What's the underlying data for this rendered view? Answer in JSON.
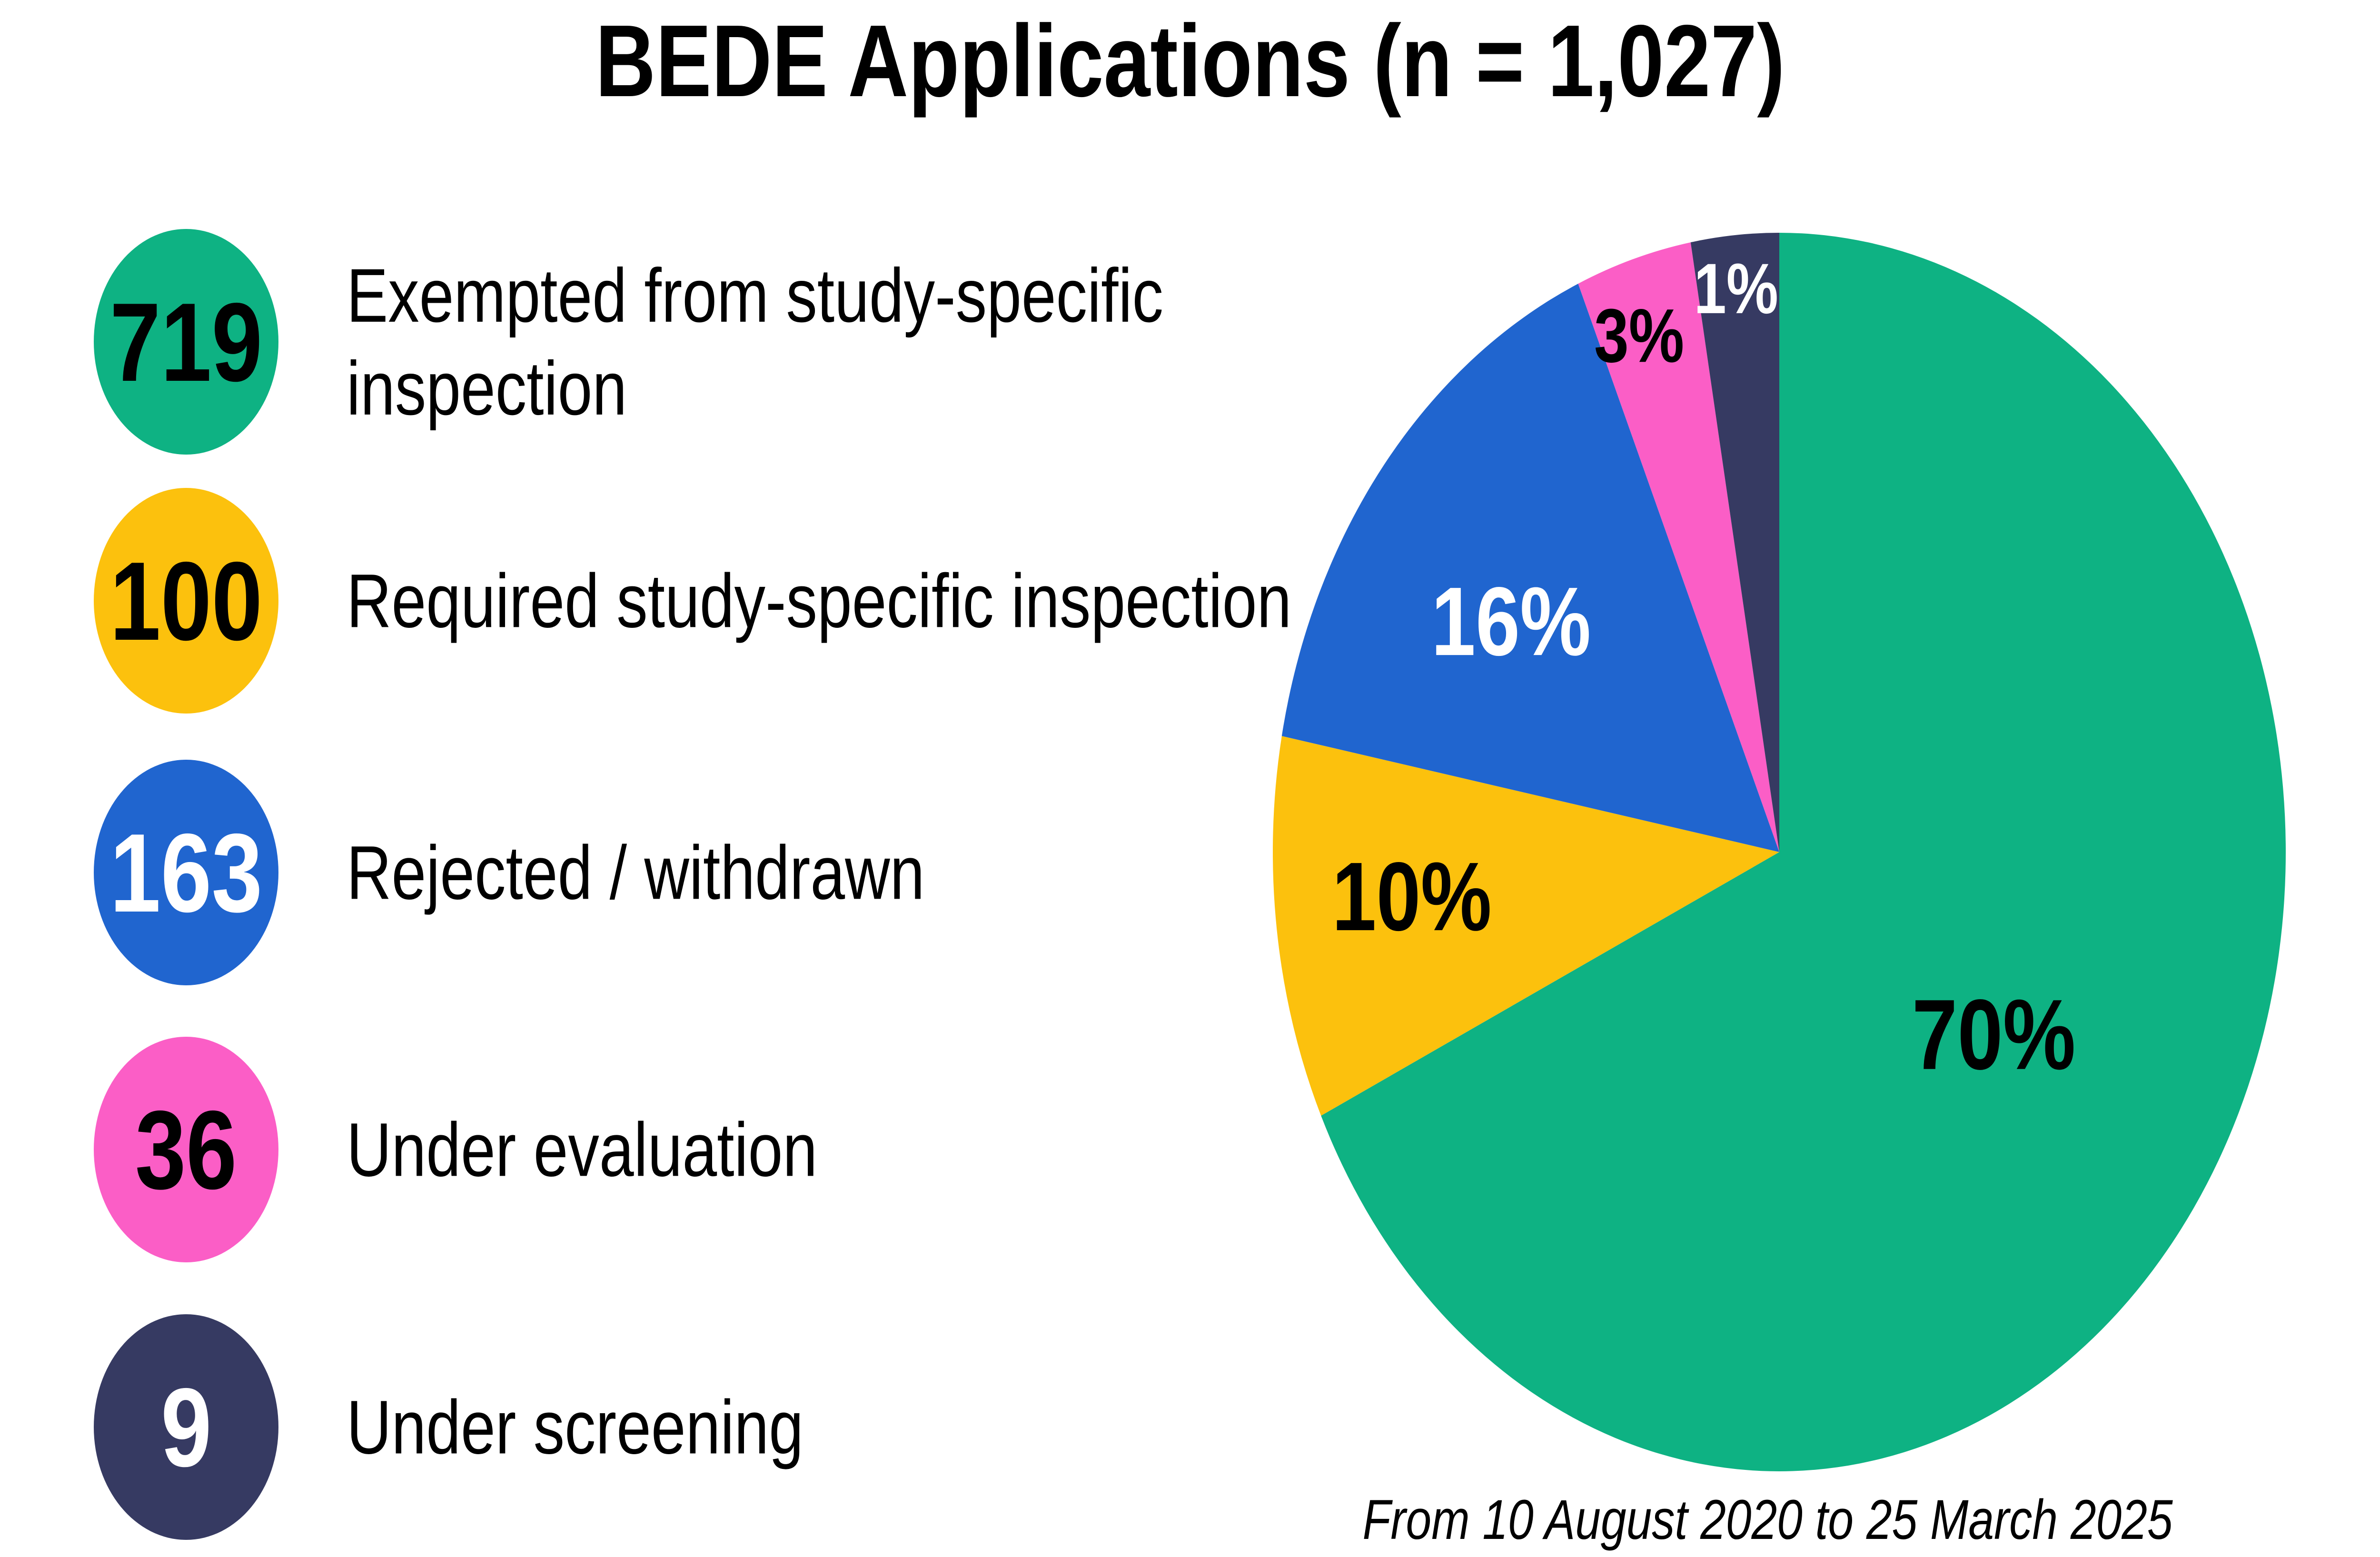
{
  "title": "BEDE Applications (n = 1,027)",
  "footnote": "From 10 August 2020 to 25 March 2025",
  "chart_data": {
    "type": "pie",
    "title": "BEDE Applications (n = 1,027)",
    "total": 1027,
    "legend_position": "left",
    "slices": [
      {
        "label": "Exempted from study-specific inspection",
        "count": 719,
        "pct_label": "70%",
        "color": "#0eb283",
        "pct_text_color": "#000000",
        "legend_number_color": "#000000"
      },
      {
        "label": "Required study-specific inspection",
        "count": 100,
        "pct_label": "10%",
        "color": "#fcc10d",
        "pct_text_color": "#000000",
        "legend_number_color": "#000000"
      },
      {
        "label": "Rejected / withdrawn",
        "count": 163,
        "pct_label": "16%",
        "color": "#2065cf",
        "pct_text_color": "#ffffff",
        "legend_number_color": "#ffffff"
      },
      {
        "label": "Under evaluation",
        "count": 36,
        "pct_label": "3%",
        "color": "#fb5ec6",
        "pct_text_color": "#000000",
        "legend_number_color": "#000000"
      },
      {
        "label": "Under screening",
        "count": 9,
        "pct_label": "1%",
        "color": "#363a62",
        "pct_text_color": "#ffffff",
        "legend_number_color": "#ffffff"
      }
    ]
  }
}
